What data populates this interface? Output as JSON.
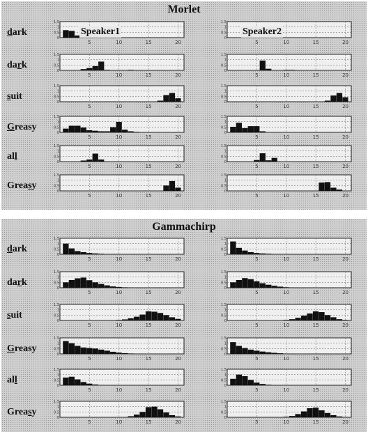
{
  "labels": [
    "dark",
    "dark",
    "suit",
    "Greasy",
    "all",
    "Greasy"
  ],
  "panels": [
    {
      "title": "Morlet"
    },
    {
      "title": "Gammachirp"
    }
  ],
  "speakers": [
    "Speaker1",
    "Speaker2"
  ],
  "chart_data": {
    "type": "bar",
    "x_ticks": [
      5,
      10,
      15,
      20
    ],
    "xlim": [
      0,
      21
    ],
    "ylim": [
      0,
      1.5
    ],
    "y_ticks": [
      "0",
      "0.5",
      "1",
      "1.5"
    ],
    "grid": true,
    "groups": [
      {
        "title": "Morlet",
        "speakers": [
          {
            "name": "Speaker1",
            "rows": [
              [
                0.7,
                0.63,
                0.2,
                0.1,
                0.05,
                0,
                0,
                0,
                0,
                0,
                0,
                0,
                0,
                0,
                0,
                0,
                0,
                0,
                0,
                0
              ],
              [
                0,
                0,
                0,
                0.12,
                0.22,
                0.4,
                0.82,
                0.05,
                0,
                0,
                0,
                0.05,
                0,
                0,
                0,
                0,
                0,
                0,
                0,
                0
              ],
              [
                0,
                0,
                0,
                0,
                0,
                0,
                0,
                0,
                0,
                0,
                0,
                0,
                0,
                0,
                0,
                0,
                0.1,
                0.62,
                0.82,
                0.32
              ],
              [
                0.35,
                0.62,
                0.62,
                0.45,
                0.2,
                0.15,
                0.1,
                0.1,
                0.48,
                0.98,
                0.25,
                0.1,
                0.05,
                0,
                0,
                0,
                0,
                0,
                0,
                0
              ],
              [
                0,
                0,
                0,
                0.1,
                0.2,
                0.75,
                0.2,
                0,
                0,
                0,
                0,
                0,
                0,
                0,
                0,
                0,
                0,
                0,
                0,
                0
              ],
              [
                0,
                0,
                0,
                0,
                0,
                0,
                0,
                0,
                0,
                0,
                0,
                0,
                0,
                0,
                0,
                0,
                0,
                0.5,
                0.92,
                0.3
              ]
            ]
          },
          {
            "name": "Speaker2",
            "rows": [
              [
                0,
                0,
                0.4,
                0.95,
                0.1,
                0,
                0,
                0,
                0,
                0,
                0,
                0,
                0,
                0,
                0,
                0,
                0,
                0,
                0,
                0
              ],
              [
                0,
                0,
                0,
                0,
                0,
                0.92,
                0.15,
                0,
                0,
                0.05,
                0.05,
                0,
                0,
                0,
                0,
                0,
                0,
                0,
                0,
                0
              ],
              [
                0,
                0,
                0,
                0,
                0,
                0,
                0,
                0,
                0,
                0,
                0,
                0,
                0,
                0,
                0,
                0,
                0.1,
                0.58,
                0.82,
                0.42
              ],
              [
                0.52,
                0.9,
                0.4,
                0.58,
                0.58,
                0.1,
                0,
                0,
                0,
                0,
                0,
                0,
                0,
                0,
                0,
                0,
                0,
                0,
                0,
                0
              ],
              [
                0,
                0,
                0,
                0,
                0.15,
                0.78,
                0.12,
                0.35,
                0,
                0,
                0,
                0,
                0,
                0,
                0,
                0,
                0,
                0,
                0,
                0
              ],
              [
                0,
                0,
                0,
                0,
                0,
                0,
                0,
                0,
                0,
                0,
                0,
                0,
                0,
                0,
                0,
                0.78,
                0.82,
                0.3,
                0.12,
                0
              ]
            ]
          }
        ]
      },
      {
        "title": "Gammachirp",
        "speakers": [
          {
            "name": "Speaker1",
            "rows": [
              [
                1.0,
                0.55,
                0.3,
                0.2,
                0.12,
                0.08,
                0.05,
                0.03,
                0.02,
                0.02,
                0,
                0,
                0,
                0,
                0,
                0,
                0,
                0,
                0,
                0
              ],
              [
                0.5,
                0.72,
                0.88,
                0.95,
                0.7,
                0.5,
                0.35,
                0.22,
                0.12,
                0.07,
                0.04,
                0.02,
                0,
                0,
                0,
                0,
                0,
                0,
                0,
                0
              ],
              [
                0,
                0,
                0,
                0,
                0,
                0,
                0,
                0,
                0.02,
                0.05,
                0.1,
                0.2,
                0.35,
                0.55,
                0.85,
                0.82,
                0.7,
                0.5,
                0.3,
                0.15
              ],
              [
                1.2,
                1.0,
                0.75,
                0.6,
                0.55,
                0.5,
                0.4,
                0.3,
                0.2,
                0.12,
                0.07,
                0.04,
                0,
                0,
                0,
                0,
                0,
                0,
                0,
                0
              ],
              [
                0.72,
                0.8,
                0.55,
                0.3,
                0.15,
                0.07,
                0.03,
                0,
                0,
                0,
                0,
                0,
                0,
                0,
                0,
                0,
                0,
                0,
                0,
                0
              ],
              [
                0,
                0,
                0,
                0,
                0,
                0,
                0,
                0,
                0,
                0,
                0,
                0.1,
                0.25,
                0.5,
                0.95,
                1.0,
                0.75,
                0.45,
                0.2,
                0.08
              ]
            ]
          },
          {
            "name": "Speaker2",
            "rows": [
              [
                1.2,
                0.6,
                0.35,
                0.2,
                0.12,
                0.08,
                0.05,
                0.03,
                0.02,
                0,
                0,
                0,
                0,
                0,
                0,
                0,
                0,
                0,
                0,
                0
              ],
              [
                0.5,
                0.72,
                0.9,
                0.8,
                0.6,
                0.42,
                0.28,
                0.18,
                0.1,
                0.05,
                0.03,
                0,
                0,
                0,
                0,
                0,
                0,
                0,
                0,
                0
              ],
              [
                0,
                0,
                0,
                0,
                0,
                0,
                0,
                0,
                0,
                0.05,
                0.12,
                0.25,
                0.45,
                0.65,
                0.85,
                0.78,
                0.5,
                0.3,
                0.12,
                0.05
              ],
              [
                1.1,
                0.75,
                0.55,
                0.4,
                0.3,
                0.22,
                0.15,
                0.1,
                0.06,
                0.03,
                0.02,
                0,
                0,
                0,
                0,
                0,
                0,
                0,
                0,
                0
              ],
              [
                0.6,
                1.0,
                0.85,
                0.5,
                0.25,
                0.12,
                0.05,
                0,
                0,
                0,
                0,
                0,
                0,
                0,
                0,
                0,
                0,
                0,
                0,
                0
              ],
              [
                0,
                0,
                0,
                0,
                0,
                0,
                0,
                0,
                0,
                0.05,
                0.12,
                0.3,
                0.55,
                0.85,
                0.9,
                0.65,
                0.4,
                0.2,
                0.08,
                0.03
              ]
            ]
          }
        ]
      }
    ]
  }
}
